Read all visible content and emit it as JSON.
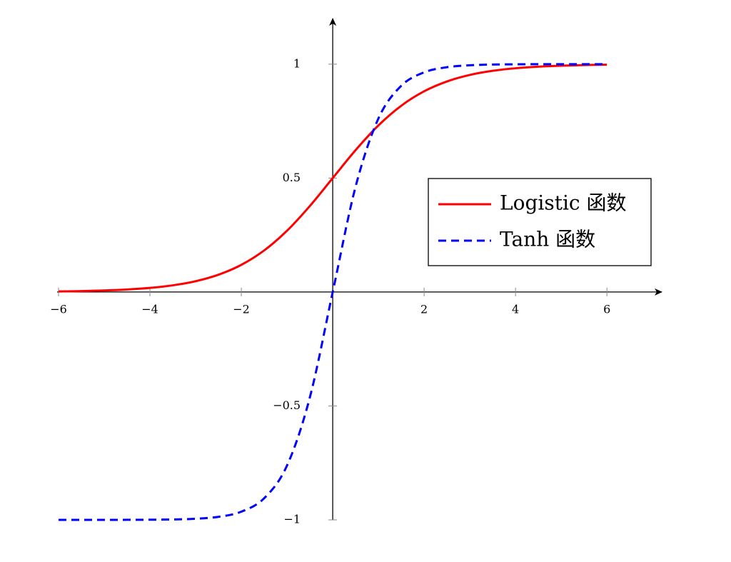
{
  "chart_data": {
    "type": "line",
    "x": [
      -6,
      -5.5,
      -5,
      -4.5,
      -4,
      -3.5,
      -3,
      -2.5,
      -2,
      -1.5,
      -1,
      -0.5,
      0,
      0.5,
      1,
      1.5,
      2,
      2.5,
      3,
      3.5,
      4,
      4.5,
      5,
      5.5,
      6
    ],
    "series": [
      {
        "name": "Logistic 函数",
        "color": "#ff0000",
        "dash": false,
        "values": [
          0.0025,
          0.0041,
          0.0067,
          0.011,
          0.018,
          0.0293,
          0.0474,
          0.0759,
          0.1192,
          0.1824,
          0.2689,
          0.3775,
          0.5,
          0.6225,
          0.7311,
          0.8176,
          0.8808,
          0.9241,
          0.9526,
          0.9707,
          0.982,
          0.989,
          0.9933,
          0.9959,
          0.9975
        ]
      },
      {
        "name": "Tanh 函数",
        "color": "#0000ff",
        "dash": true,
        "values": [
          -1,
          -1,
          -0.9999,
          -0.9998,
          -0.9993,
          -0.9982,
          -0.9951,
          -0.9866,
          -0.964,
          -0.9051,
          -0.7616,
          -0.4621,
          0,
          0.4621,
          0.7616,
          0.9051,
          0.964,
          0.9866,
          0.9951,
          0.9982,
          0.9993,
          0.9998,
          0.9999,
          1,
          1
        ]
      }
    ],
    "xlim": [
      -6,
      7.2
    ],
    "ylim": [
      -1,
      1.2
    ],
    "xticks": [
      {
        "value": -6,
        "label": "−6"
      },
      {
        "value": -4,
        "label": "−4"
      },
      {
        "value": -2,
        "label": "−2"
      },
      2,
      4,
      6
    ],
    "yticks": [
      {
        "value": -1,
        "label": "−1"
      },
      {
        "value": -0.5,
        "label": "−0.5"
      },
      0.5,
      1
    ],
    "legend": "center right"
  }
}
